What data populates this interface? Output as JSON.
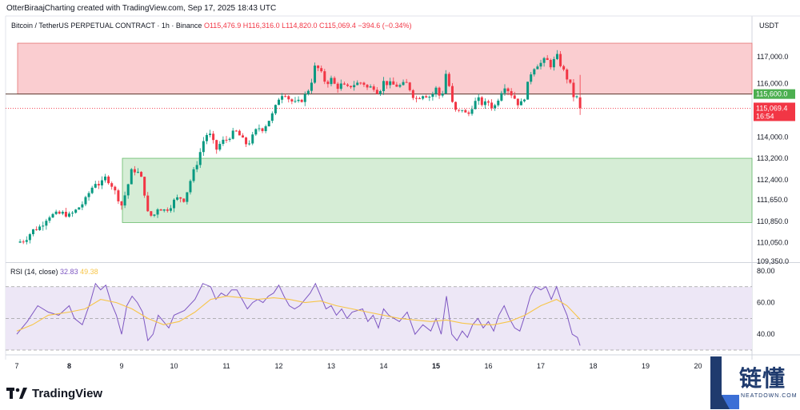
{
  "header": {
    "caption": "OtterBiraajCharting created with TradingView.com, Sep 17, 2025 18:43 UTC",
    "symbol": "Bitcoin / TetherUS PERPETUAL CONTRACT · 1h · Binance",
    "ohlc": "O115,476.9 H116,316.0 L114,820.0 C115,069.4 −394.6 (−0.34%)",
    "currency": "USDT"
  },
  "rsi_legend": {
    "label": "RSI (14, close)",
    "rsi_value": "32.83",
    "ma_value": "49.38"
  },
  "branding": {
    "logo_text": "TradingView"
  },
  "watermark": {
    "chinese": "链懂",
    "english": "NEATDOWN.COM"
  },
  "colors": {
    "up": "#089981",
    "down": "#f23645",
    "resistance_zone": "#f9c4c8",
    "support_zone": "#cfeacf",
    "rsi_line": "#7e57c2",
    "rsi_ma": "#f7c548",
    "rsi_band": "#ede7f6",
    "level_line": "#5d4037",
    "level_badge": "#4caf50",
    "price_badge": "#f23645"
  },
  "chart_data": [
    {
      "type": "candlestick",
      "interval": "1h",
      "y_axis_side": "right",
      "ylim": [
        109350,
        117800
      ],
      "y_ticks": [
        "117,000.0",
        "116,000.0",
        "114,000.0",
        "113,200.0",
        "112,400.0",
        "111,650.0",
        "110,850.0",
        "110,050.0",
        "109,350.0"
      ],
      "y_tick_values": [
        117000,
        116000,
        114000,
        113200,
        112400,
        111650,
        110850,
        110050,
        109350
      ],
      "x_ticks": [
        "7",
        "8",
        "9",
        "10",
        "11",
        "12",
        "13",
        "14",
        "15",
        "16",
        "17",
        "18",
        "19",
        "20"
      ],
      "x_ticks_bold": [
        "8",
        "15"
      ],
      "zones": [
        {
          "name": "resistance",
          "from": 115600,
          "to": 117500,
          "start_day": 7,
          "end_day": 21
        },
        {
          "name": "support",
          "from": 110800,
          "to": 113200,
          "start_day": 9.0,
          "end_day": 21
        }
      ],
      "level_line": {
        "value": 115600,
        "label": "115,600.0"
      },
      "last_price": {
        "value": 115069.4,
        "label": "115,069.4",
        "countdown": "16:54"
      },
      "close_path": [
        [
          7.0,
          110050
        ],
        [
          7.15,
          110150
        ],
        [
          7.3,
          110500
        ],
        [
          7.45,
          110650
        ],
        [
          7.6,
          111050
        ],
        [
          7.75,
          111100
        ],
        [
          7.9,
          111150
        ],
        [
          8.0,
          111050
        ],
        [
          8.1,
          111200
        ],
        [
          8.2,
          111400
        ],
        [
          8.3,
          111600
        ],
        [
          8.4,
          112000
        ],
        [
          8.5,
          112300
        ],
        [
          8.6,
          112200
        ],
        [
          8.7,
          112500
        ],
        [
          8.8,
          112250
        ],
        [
          8.9,
          111850
        ],
        [
          9.0,
          111450
        ],
        [
          9.1,
          112050
        ],
        [
          9.2,
          112800
        ],
        [
          9.3,
          112700
        ],
        [
          9.4,
          112350
        ],
        [
          9.5,
          111150
        ],
        [
          9.6,
          111000
        ],
        [
          9.7,
          111400
        ],
        [
          9.8,
          111250
        ],
        [
          9.9,
          111350
        ],
        [
          10.0,
          111600
        ],
        [
          10.1,
          111750
        ],
        [
          10.2,
          111650
        ],
        [
          10.3,
          112300
        ],
        [
          10.45,
          113100
        ],
        [
          10.6,
          114100
        ],
        [
          10.7,
          114050
        ],
        [
          10.8,
          113500
        ],
        [
          10.9,
          113800
        ],
        [
          11.0,
          113900
        ],
        [
          11.1,
          114100
        ],
        [
          11.2,
          114200
        ],
        [
          11.3,
          113900
        ],
        [
          11.4,
          113700
        ],
        [
          11.5,
          114000
        ],
        [
          11.6,
          114350
        ],
        [
          11.7,
          114300
        ],
        [
          11.8,
          114600
        ],
        [
          11.9,
          114900
        ],
        [
          12.0,
          115450
        ],
        [
          12.1,
          115700
        ],
        [
          12.2,
          115400
        ],
        [
          12.3,
          115250
        ],
        [
          12.4,
          115300
        ],
        [
          12.5,
          115550
        ],
        [
          12.6,
          115900
        ],
        [
          12.7,
          116700
        ],
        [
          12.8,
          116400
        ],
        [
          12.9,
          116000
        ],
        [
          13.0,
          116150
        ],
        [
          13.1,
          115850
        ],
        [
          13.2,
          115950
        ],
        [
          13.3,
          115800
        ],
        [
          13.4,
          115950
        ],
        [
          13.5,
          116000
        ],
        [
          13.6,
          116050
        ],
        [
          13.7,
          115800
        ],
        [
          13.8,
          115900
        ],
        [
          13.9,
          115650
        ],
        [
          14.0,
          116050
        ],
        [
          14.15,
          115950
        ],
        [
          14.3,
          115900
        ],
        [
          14.45,
          116000
        ],
        [
          14.6,
          115400
        ],
        [
          14.75,
          115600
        ],
        [
          14.9,
          115500
        ],
        [
          15.0,
          115800
        ],
        [
          15.1,
          115400
        ],
        [
          15.2,
          116500
        ],
        [
          15.3,
          115300
        ],
        [
          15.4,
          114850
        ],
        [
          15.5,
          115050
        ],
        [
          15.6,
          114750
        ],
        [
          15.7,
          115200
        ],
        [
          15.8,
          115400
        ],
        [
          15.9,
          115200
        ],
        [
          16.0,
          115300
        ],
        [
          16.1,
          115050
        ],
        [
          16.2,
          115500
        ],
        [
          16.3,
          115950
        ],
        [
          16.4,
          115700
        ],
        [
          16.5,
          115450
        ],
        [
          16.6,
          115150
        ],
        [
          16.7,
          115550
        ],
        [
          16.8,
          116350
        ],
        [
          16.9,
          116700
        ],
        [
          17.0,
          116750
        ],
        [
          17.1,
          116900
        ],
        [
          17.2,
          116650
        ],
        [
          17.3,
          117050
        ],
        [
          17.4,
          116600
        ],
        [
          17.5,
          116200
        ],
        [
          17.55,
          116050
        ],
        [
          17.6,
          115550
        ],
        [
          17.7,
          115450
        ],
        [
          17.75,
          115069.4
        ]
      ]
    },
    {
      "type": "line",
      "title": "RSI (14, close)",
      "ylim": [
        29,
        84
      ],
      "y_ticks": [
        "80.00",
        "60.00",
        "40.00"
      ],
      "y_tick_values": [
        80,
        60,
        40
      ],
      "band": {
        "upper": 70,
        "lower": 30,
        "middle": 50
      },
      "series": [
        {
          "name": "RSI",
          "points": [
            [
              7.0,
              40
            ],
            [
              7.2,
              48
            ],
            [
              7.4,
              58
            ],
            [
              7.6,
              54
            ],
            [
              7.8,
              52
            ],
            [
              8.0,
              58
            ],
            [
              8.1,
              50
            ],
            [
              8.25,
              46
            ],
            [
              8.4,
              60
            ],
            [
              8.5,
              72
            ],
            [
              8.6,
              68
            ],
            [
              8.7,
              71
            ],
            [
              8.8,
              60
            ],
            [
              8.9,
              52
            ],
            [
              9.0,
              40
            ],
            [
              9.1,
              58
            ],
            [
              9.2,
              64
            ],
            [
              9.3,
              60
            ],
            [
              9.4,
              54
            ],
            [
              9.5,
              36
            ],
            [
              9.6,
              40
            ],
            [
              9.7,
              52
            ],
            [
              9.8,
              48
            ],
            [
              9.9,
              44
            ],
            [
              10.0,
              52
            ],
            [
              10.2,
              55
            ],
            [
              10.4,
              62
            ],
            [
              10.55,
              72
            ],
            [
              10.7,
              70
            ],
            [
              10.8,
              62
            ],
            [
              10.9,
              66
            ],
            [
              11.0,
              64
            ],
            [
              11.1,
              68
            ],
            [
              11.2,
              68
            ],
            [
              11.3,
              62
            ],
            [
              11.4,
              56
            ],
            [
              11.5,
              60
            ],
            [
              11.6,
              62
            ],
            [
              11.7,
              60
            ],
            [
              11.8,
              64
            ],
            [
              11.9,
              66
            ],
            [
              12.0,
              71
            ],
            [
              12.1,
              64
            ],
            [
              12.2,
              58
            ],
            [
              12.3,
              56
            ],
            [
              12.4,
              58
            ],
            [
              12.5,
              62
            ],
            [
              12.6,
              66
            ],
            [
              12.7,
              72
            ],
            [
              12.8,
              64
            ],
            [
              12.9,
              56
            ],
            [
              13.0,
              58
            ],
            [
              13.1,
              52
            ],
            [
              13.2,
              56
            ],
            [
              13.3,
              50
            ],
            [
              13.4,
              54
            ],
            [
              13.5,
              55
            ],
            [
              13.6,
              56
            ],
            [
              13.7,
              48
            ],
            [
              13.8,
              52
            ],
            [
              13.9,
              44
            ],
            [
              14.0,
              56
            ],
            [
              14.1,
              52
            ],
            [
              14.2,
              50
            ],
            [
              14.3,
              48
            ],
            [
              14.45,
              54
            ],
            [
              14.6,
              40
            ],
            [
              14.75,
              46
            ],
            [
              14.9,
              42
            ],
            [
              15.0,
              50
            ],
            [
              15.1,
              40
            ],
            [
              15.2,
              64
            ],
            [
              15.3,
              40
            ],
            [
              15.4,
              36
            ],
            [
              15.5,
              42
            ],
            [
              15.6,
              38
            ],
            [
              15.7,
              46
            ],
            [
              15.8,
              50
            ],
            [
              15.9,
              44
            ],
            [
              16.0,
              48
            ],
            [
              16.1,
              42
            ],
            [
              16.2,
              52
            ],
            [
              16.3,
              58
            ],
            [
              16.4,
              50
            ],
            [
              16.5,
              44
            ],
            [
              16.6,
              42
            ],
            [
              16.7,
              52
            ],
            [
              16.8,
              64
            ],
            [
              16.9,
              70
            ],
            [
              17.0,
              68
            ],
            [
              17.1,
              70
            ],
            [
              17.2,
              62
            ],
            [
              17.3,
              70
            ],
            [
              17.4,
              60
            ],
            [
              17.5,
              52
            ],
            [
              17.55,
              46
            ],
            [
              17.6,
              40
            ],
            [
              17.7,
              38
            ],
            [
              17.75,
              32.83
            ]
          ]
        },
        {
          "name": "MA",
          "points": [
            [
              7.0,
              42
            ],
            [
              7.3,
              46
            ],
            [
              7.6,
              52
            ],
            [
              8.0,
              54
            ],
            [
              8.3,
              56
            ],
            [
              8.6,
              62
            ],
            [
              8.9,
              60
            ],
            [
              9.2,
              56
            ],
            [
              9.5,
              50
            ],
            [
              9.8,
              46
            ],
            [
              10.1,
              48
            ],
            [
              10.4,
              54
            ],
            [
              10.7,
              62
            ],
            [
              11.0,
              64
            ],
            [
              11.3,
              63
            ],
            [
              11.6,
              62
            ],
            [
              11.9,
              63
            ],
            [
              12.2,
              62
            ],
            [
              12.5,
              60
            ],
            [
              12.8,
              61
            ],
            [
              13.1,
              58
            ],
            [
              13.4,
              56
            ],
            [
              13.7,
              54
            ],
            [
              14.0,
              52
            ],
            [
              14.3,
              50
            ],
            [
              14.6,
              49
            ],
            [
              14.9,
              48
            ],
            [
              15.2,
              49
            ],
            [
              15.5,
              47
            ],
            [
              15.8,
              46
            ],
            [
              16.1,
              46
            ],
            [
              16.4,
              48
            ],
            [
              16.7,
              52
            ],
            [
              17.0,
              58
            ],
            [
              17.3,
              62
            ],
            [
              17.5,
              58
            ],
            [
              17.75,
              49.38
            ]
          ]
        }
      ]
    }
  ]
}
